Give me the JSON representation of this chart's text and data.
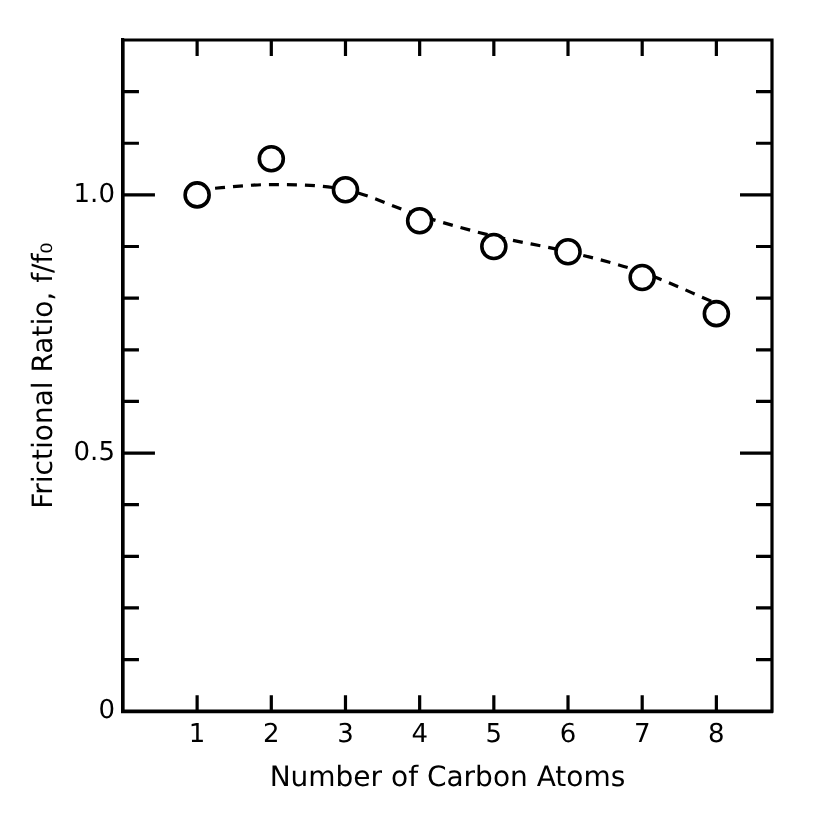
{
  "chart_data": {
    "type": "scatter",
    "xlabel": "Number of Carbon Atoms",
    "ylabel": "Frictional Ratio, f/f₀",
    "xlim": [
      0,
      8.75
    ],
    "ylim": [
      0,
      1.3
    ],
    "xticks": [
      1,
      2,
      3,
      4,
      5,
      6,
      7,
      8
    ],
    "yticks": [
      0,
      {
        "value": 0.1,
        "label": null
      },
      {
        "value": 0.2,
        "label": null
      },
      {
        "value": 0.3,
        "label": null
      },
      {
        "value": 0.4,
        "label": null
      },
      0.5,
      {
        "value": 0.6,
        "label": null
      },
      {
        "value": 0.7,
        "label": null
      },
      {
        "value": 0.8,
        "label": null
      },
      {
        "value": 0.9,
        "label": null
      },
      {
        "value": 1,
        "label": "1.0"
      },
      {
        "value": 1.1,
        "label": null
      },
      {
        "value": 1.2,
        "label": null
      }
    ],
    "marker": "circle",
    "grid": false,
    "legend": false,
    "series": [
      {
        "type": "scatter",
        "color": "#000000",
        "x": [
          1,
          2,
          3,
          4,
          5,
          6,
          7,
          8
        ],
        "values": [
          1.0,
          1.07,
          1.01,
          0.95,
          0.9,
          0.89,
          0.84,
          0.77
        ]
      },
      {
        "type": "line",
        "color": "#000000",
        "line_style": "dashed",
        "marker": "none",
        "x": [
          1,
          2,
          3,
          4,
          5,
          6,
          7,
          8
        ],
        "values": [
          1.01,
          1.02,
          1.01,
          0.96,
          0.92,
          0.89,
          0.85,
          0.79
        ]
      }
    ]
  }
}
